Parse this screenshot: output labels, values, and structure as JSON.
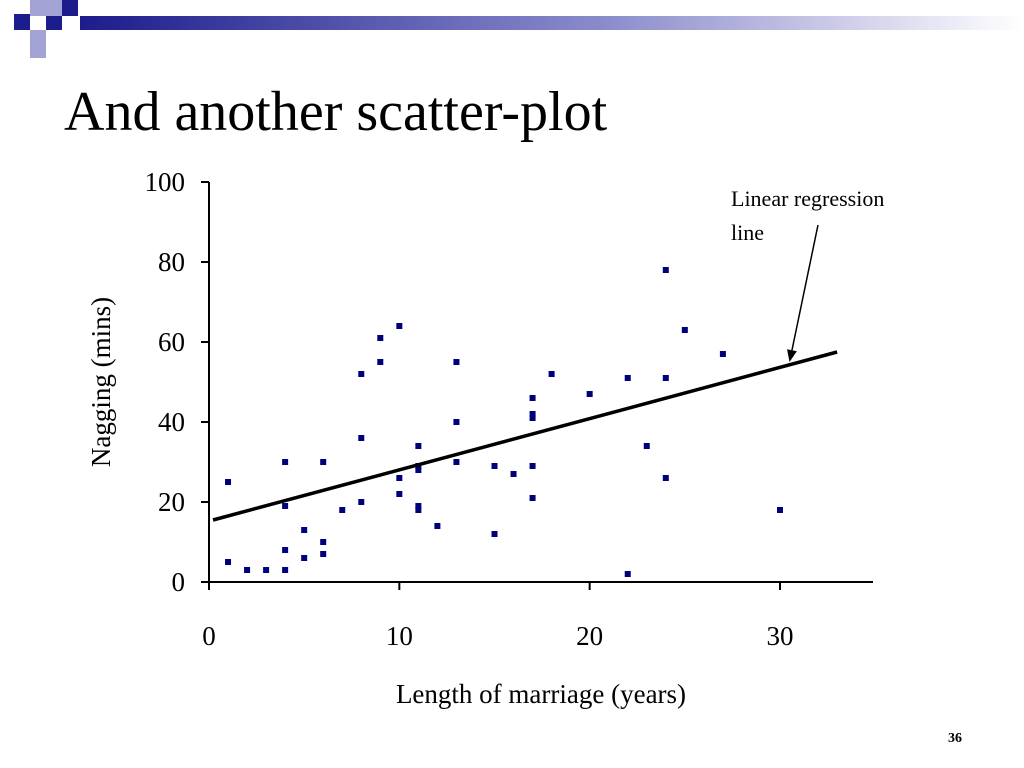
{
  "slide": {
    "title": "And another scatter-plot",
    "slide_number": "36",
    "accent_color": "#1c1c8c",
    "accent_light": "#a3a3d6"
  },
  "chart_data": {
    "type": "scatter",
    "title": "",
    "xlabel": "Length of marriage (years)",
    "ylabel": "Nagging (mins)",
    "xlim": [
      0,
      35
    ],
    "ylim": [
      0,
      100
    ],
    "x_ticks": [
      0,
      10,
      20,
      30
    ],
    "y_ticks": [
      0,
      20,
      40,
      60,
      80,
      100
    ],
    "grid": false,
    "marker_color": "#00007a",
    "points": [
      [
        1,
        25
      ],
      [
        1,
        5
      ],
      [
        2,
        3
      ],
      [
        3,
        3
      ],
      [
        4,
        3
      ],
      [
        4,
        8
      ],
      [
        4,
        19
      ],
      [
        4,
        30
      ],
      [
        5,
        13
      ],
      [
        5,
        6
      ],
      [
        6,
        10
      ],
      [
        6,
        7
      ],
      [
        6,
        30
      ],
      [
        7,
        18
      ],
      [
        8,
        52
      ],
      [
        8,
        36
      ],
      [
        8,
        20
      ],
      [
        9,
        61
      ],
      [
        9,
        55
      ],
      [
        10,
        64
      ],
      [
        10,
        26
      ],
      [
        10,
        22
      ],
      [
        11,
        34
      ],
      [
        11,
        29
      ],
      [
        11,
        28
      ],
      [
        11,
        19
      ],
      [
        11,
        18
      ],
      [
        12,
        14
      ],
      [
        13,
        55
      ],
      [
        13,
        40
      ],
      [
        13,
        30
      ],
      [
        15,
        29
      ],
      [
        15,
        12
      ],
      [
        16,
        27
      ],
      [
        17,
        46
      ],
      [
        17,
        42
      ],
      [
        17,
        41
      ],
      [
        17,
        29
      ],
      [
        17,
        21
      ],
      [
        18,
        52
      ],
      [
        20,
        47
      ],
      [
        22,
        51
      ],
      [
        22,
        2
      ],
      [
        23,
        34
      ],
      [
        24,
        78
      ],
      [
        24,
        51
      ],
      [
        24,
        26
      ],
      [
        25,
        63
      ],
      [
        27,
        57
      ],
      [
        30,
        18
      ]
    ],
    "regression_line": {
      "x": [
        0,
        33
      ],
      "y": [
        15.5,
        57.5
      ]
    },
    "annotation": {
      "line1": "Linear regression",
      "line2": "line",
      "target_x": 30.5,
      "target_y": 55
    }
  }
}
